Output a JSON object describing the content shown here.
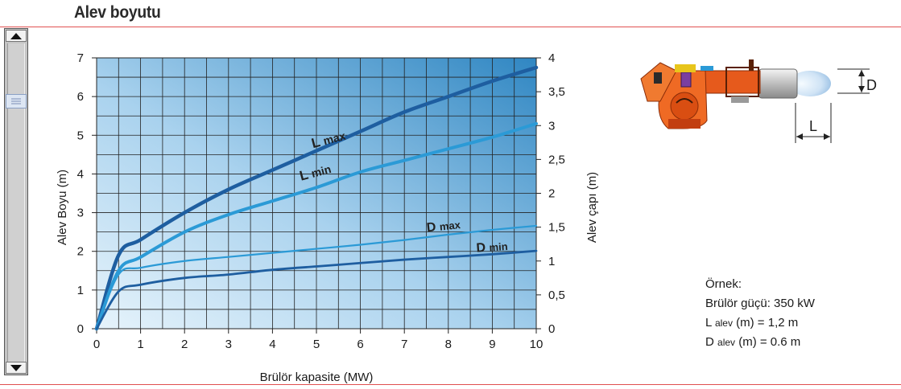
{
  "page": {
    "title": "Alev boyutu"
  },
  "scrollbar": {
    "up_icon": "triangle-up-icon",
    "down_icon": "triangle-down-icon",
    "thumb_icon": "grip-lines-icon"
  },
  "diagram": {
    "d_label": "D",
    "l_label": "L"
  },
  "example": {
    "heading": "Örnek:",
    "line1": "Brülör güçü: 350 kW",
    "l_main": "L",
    "l_sub": "alev",
    "l_rest": "(m) = 1,2 m",
    "d_main": "D",
    "d_sub": "alev",
    "d_rest": "(m) = 0.6 m"
  },
  "colors": {
    "dark_blue": "#1e5ea0",
    "light_blue": "#2b9ad6",
    "grid_bg_light": "#d8ecf7",
    "grid_bg_dark": "#2f86c2",
    "accent_red": "#e05050"
  },
  "chart_data": {
    "type": "line",
    "xlabel": "Brülör kapasite (MW)",
    "ylabel": "Alev Boyu (m)",
    "ylabel_right": "Alev çapı (m)",
    "x_ticks": [
      "0",
      "1",
      "2",
      "3",
      "4",
      "5",
      "6",
      "7",
      "8",
      "9",
      "10"
    ],
    "y_ticks": [
      "0",
      "1",
      "2",
      "3",
      "4",
      "5",
      "6",
      "7"
    ],
    "y2_ticks": [
      "0",
      "0,5",
      "1",
      "1,5",
      "2",
      "2,5",
      "3",
      "3,5",
      "4"
    ],
    "xlim": [
      0,
      10
    ],
    "ylim": [
      0,
      7
    ],
    "y2lim": [
      0,
      4
    ],
    "grid": true,
    "series": [
      {
        "name": "L max",
        "axis": "left",
        "color": "#1e5ea0",
        "x": [
          0,
          0.5,
          1,
          2,
          3,
          4,
          5,
          6,
          7,
          8,
          9,
          10
        ],
        "values": [
          0,
          1.9,
          2.3,
          3.0,
          3.6,
          4.1,
          4.6,
          5.1,
          5.6,
          6.0,
          6.4,
          6.75
        ]
      },
      {
        "name": "L min",
        "axis": "left",
        "color": "#2b9ad6",
        "x": [
          0,
          0.5,
          1,
          2,
          3,
          4,
          5,
          6,
          7,
          8,
          9,
          10
        ],
        "values": [
          0,
          1.5,
          1.85,
          2.5,
          2.95,
          3.3,
          3.65,
          4.05,
          4.35,
          4.65,
          4.95,
          5.3
        ]
      },
      {
        "name": "D max",
        "axis": "right",
        "color": "#2b9ad6",
        "x": [
          0,
          0.5,
          1,
          2,
          3,
          4,
          5,
          6,
          7,
          8,
          9,
          10
        ],
        "values": [
          0,
          0.8,
          0.9,
          1.0,
          1.06,
          1.12,
          1.18,
          1.24,
          1.31,
          1.39,
          1.46,
          1.52
        ]
      },
      {
        "name": "D min",
        "axis": "right",
        "color": "#1e5ea0",
        "x": [
          0,
          0.5,
          1,
          2,
          3,
          4,
          5,
          6,
          7,
          8,
          9,
          10
        ],
        "values": [
          0,
          0.55,
          0.65,
          0.75,
          0.8,
          0.87,
          0.92,
          0.97,
          1.02,
          1.06,
          1.1,
          1.15
        ]
      }
    ],
    "curve_labels": [
      "L max",
      "L min",
      "D max",
      "D min"
    ]
  }
}
